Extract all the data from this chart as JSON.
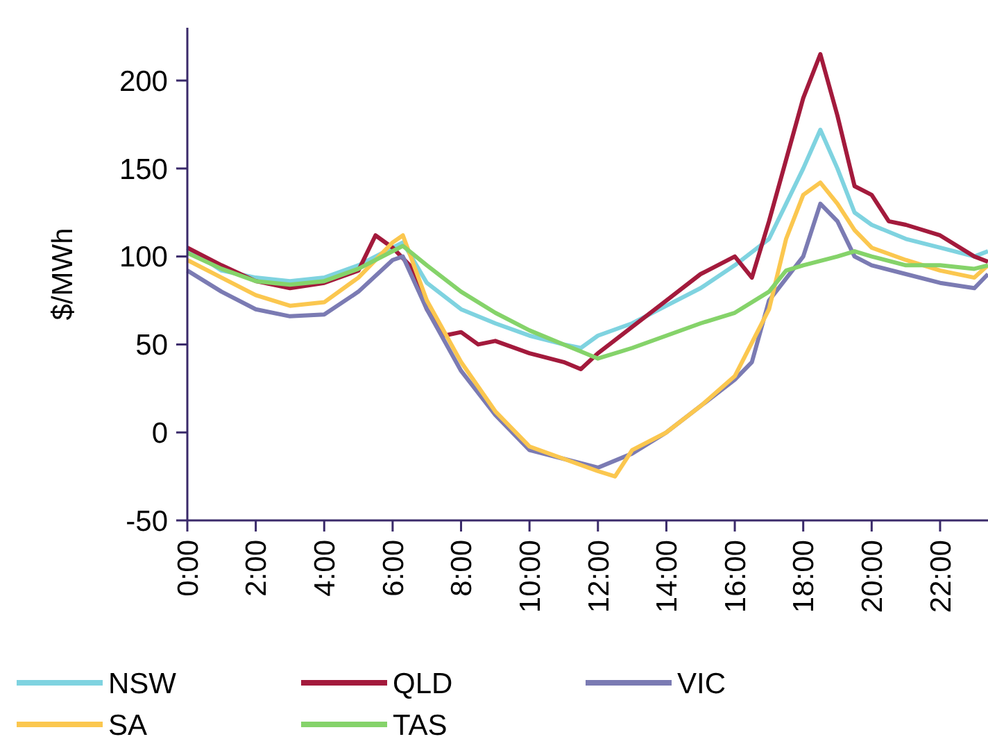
{
  "chart_data": {
    "type": "line",
    "ylabel": "$/MWh",
    "xlim": [
      0,
      23.4
    ],
    "xticks": [
      {
        "value": 0,
        "label": "0:00"
      },
      {
        "value": 2,
        "label": "2:00"
      },
      {
        "value": 4,
        "label": "4:00"
      },
      {
        "value": 6,
        "label": "6:00"
      },
      {
        "value": 8,
        "label": "8:00"
      },
      {
        "value": 10,
        "label": "10:00"
      },
      {
        "value": 12,
        "label": "12:00"
      },
      {
        "value": 14,
        "label": "14:00"
      },
      {
        "value": 16,
        "label": "16:00"
      },
      {
        "value": 18,
        "label": "18:00"
      },
      {
        "value": 20,
        "label": "20:00"
      },
      {
        "value": 22,
        "label": "22:00"
      }
    ],
    "ylim": [
      -50,
      230
    ],
    "yticks": [
      -50,
      0,
      50,
      100,
      150,
      200
    ],
    "grid": false,
    "legend": "bottom",
    "marker": "none",
    "line_style": "solid",
    "series": [
      {
        "name": "NSW",
        "color": "#7fd3e0",
        "x": [
          0,
          1,
          2,
          3,
          4,
          5,
          6,
          6.3,
          7,
          8,
          9,
          10,
          11,
          11.5,
          12,
          13,
          14,
          15,
          16,
          17,
          17.5,
          18,
          18.5,
          19,
          19.5,
          20,
          21,
          22,
          23,
          23.4
        ],
        "values": [
          105,
          92,
          88,
          86,
          88,
          95,
          105,
          108,
          85,
          70,
          62,
          55,
          50,
          48,
          55,
          62,
          72,
          82,
          95,
          110,
          130,
          150,
          172,
          150,
          125,
          118,
          110,
          105,
          100,
          103
        ]
      },
      {
        "name": "QLD",
        "color": "#a31a3c",
        "x": [
          0,
          0.5,
          1,
          2,
          3,
          4,
          5,
          5.5,
          6,
          6.5,
          7,
          7.5,
          8,
          8.5,
          9,
          10,
          11,
          11.5,
          12,
          13,
          14,
          15,
          16,
          16.5,
          17,
          17.5,
          18,
          18.5,
          19,
          19.5,
          20,
          20.5,
          21,
          22,
          23,
          23.4
        ],
        "values": [
          105,
          100,
          95,
          86,
          82,
          85,
          92,
          112,
          105,
          95,
          70,
          55,
          57,
          50,
          52,
          45,
          40,
          36,
          45,
          60,
          75,
          90,
          100,
          88,
          120,
          155,
          190,
          215,
          180,
          140,
          135,
          120,
          118,
          112,
          100,
          97
        ]
      },
      {
        "name": "VIC",
        "color": "#7b7bb3",
        "x": [
          0,
          1,
          2,
          3,
          4,
          5,
          6,
          6.3,
          7,
          8,
          9,
          10,
          11,
          12,
          13,
          14,
          15,
          16,
          16.5,
          17,
          18,
          18.5,
          19,
          19.5,
          20,
          21,
          22,
          23,
          23.4
        ],
        "values": [
          92,
          80,
          70,
          66,
          67,
          80,
          98,
          100,
          70,
          35,
          10,
          -10,
          -15,
          -20,
          -12,
          0,
          15,
          30,
          40,
          75,
          100,
          130,
          120,
          100,
          95,
          90,
          85,
          82,
          90
        ]
      },
      {
        "name": "SA",
        "color": "#fbc74f",
        "x": [
          0,
          1,
          2,
          3,
          4,
          5,
          6,
          6.3,
          7,
          8,
          9,
          10,
          11,
          12,
          12.5,
          13,
          14,
          15,
          16,
          17,
          17.5,
          18,
          18.5,
          19,
          19.5,
          20,
          21,
          22,
          23,
          23.4
        ],
        "values": [
          98,
          88,
          78,
          72,
          74,
          88,
          108,
          112,
          75,
          40,
          12,
          -8,
          -15,
          -22,
          -25,
          -10,
          0,
          15,
          32,
          70,
          110,
          135,
          142,
          130,
          115,
          105,
          98,
          92,
          88,
          95
        ]
      },
      {
        "name": "TAS",
        "color": "#85d36a",
        "x": [
          0,
          1,
          2,
          3,
          4,
          5,
          6,
          6.3,
          7,
          8,
          9,
          10,
          11,
          11.5,
          12,
          13,
          14,
          15,
          16,
          17,
          17.5,
          18,
          19,
          19.5,
          20,
          21,
          22,
          23,
          23.4
        ],
        "values": [
          102,
          93,
          86,
          84,
          86,
          93,
          103,
          106,
          95,
          80,
          68,
          58,
          50,
          46,
          42,
          48,
          55,
          62,
          68,
          80,
          92,
          95,
          100,
          103,
          100,
          95,
          95,
          93,
          95
        ]
      }
    ]
  }
}
